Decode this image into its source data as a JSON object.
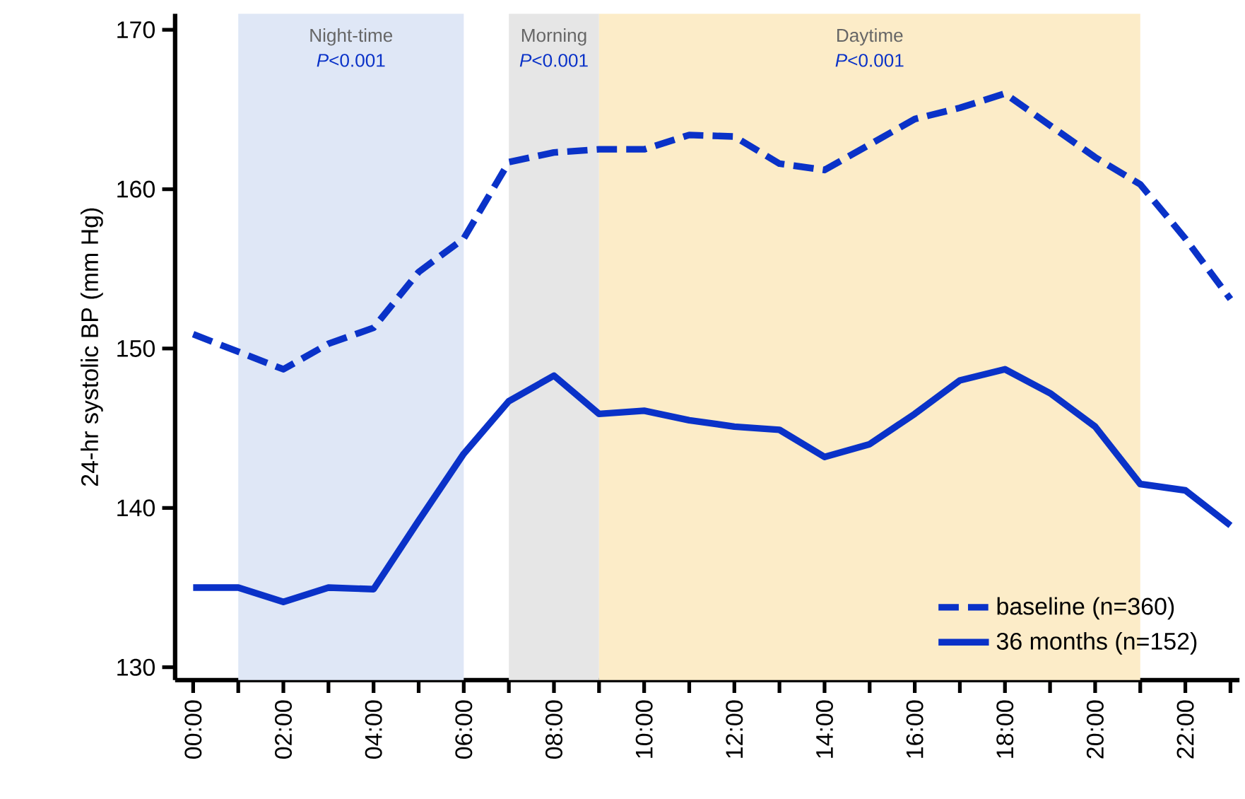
{
  "chart_data": {
    "type": "line",
    "ylabel": "24-hr systolic BP (mm Hg)",
    "x": [
      0,
      1,
      2,
      3,
      4,
      5,
      6,
      7,
      8,
      9,
      10,
      11,
      12,
      13,
      14,
      15,
      16,
      17,
      18,
      19,
      20,
      21,
      22,
      23
    ],
    "series": [
      {
        "name": "baseline (n=360)",
        "color": "#0a32c8",
        "line_style": "dashed",
        "values": [
          150.9,
          149.8,
          148.7,
          150.3,
          151.3,
          154.8,
          156.9,
          161.7,
          162.3,
          162.5,
          162.5,
          163.4,
          163.3,
          161.6,
          161.2,
          162.8,
          164.4,
          165.1,
          166.0,
          164.0,
          162.0,
          160.3,
          156.9,
          153.1
        ]
      },
      {
        "name": "36 months (n=152)",
        "color": "#0a32c8",
        "line_style": "solid",
        "values": [
          135.0,
          135.0,
          134.1,
          135.0,
          134.9,
          139.2,
          143.4,
          146.7,
          148.3,
          145.9,
          146.1,
          145.5,
          145.1,
          144.9,
          143.2,
          144.0,
          145.9,
          148.0,
          148.7,
          147.2,
          145.1,
          141.5,
          141.1,
          138.9
        ]
      }
    ],
    "xlim": [
      -0.4,
      23.2
    ],
    "ylim": [
      129.2,
      171
    ],
    "xticks": [
      {
        "value": 0,
        "label": "00:00"
      },
      {
        "value": 1,
        "label": null
      },
      {
        "value": 2,
        "label": "02:00"
      },
      {
        "value": 3,
        "label": null
      },
      {
        "value": 4,
        "label": "04:00"
      },
      {
        "value": 5,
        "label": null
      },
      {
        "value": 6,
        "label": "06:00"
      },
      {
        "value": 7,
        "label": null
      },
      {
        "value": 8,
        "label": "08:00"
      },
      {
        "value": 9,
        "label": null
      },
      {
        "value": 10,
        "label": "10:00"
      },
      {
        "value": 11,
        "label": null
      },
      {
        "value": 12,
        "label": "12:00"
      },
      {
        "value": 13,
        "label": null
      },
      {
        "value": 14,
        "label": "14:00"
      },
      {
        "value": 15,
        "label": null
      },
      {
        "value": 16,
        "label": "16:00"
      },
      {
        "value": 17,
        "label": null
      },
      {
        "value": 18,
        "label": "18:00"
      },
      {
        "value": 19,
        "label": null
      },
      {
        "value": 20,
        "label": "20:00"
      },
      {
        "value": 21,
        "label": null
      },
      {
        "value": 22,
        "label": "22:00"
      },
      {
        "value": 23,
        "label": null
      }
    ],
    "yticks": [
      130,
      140,
      150,
      160,
      170
    ],
    "bands": [
      {
        "axis": "x",
        "from": 1,
        "to": 6,
        "label": "Night-time",
        "color": "#dfe7f6"
      },
      {
        "axis": "x",
        "from": 7,
        "to": 9,
        "label": "Morning",
        "color": "#e6e6e6"
      },
      {
        "axis": "x",
        "from": 9,
        "to": 21,
        "label": "Daytime",
        "color": "#fcecc8"
      }
    ],
    "annotations": [
      "*P*<0.001",
      "*P*<0.001",
      "*P*<0.001"
    ],
    "grid": false,
    "legend": "bottom right",
    "marker": "none"
  }
}
